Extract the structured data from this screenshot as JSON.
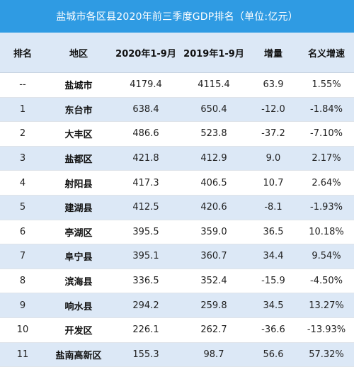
{
  "title": "盐城市各区县2020年前三季度GDP排名（单位:亿元）",
  "columns": [
    "排名",
    "地区",
    "2020年1-9月",
    "2019年1-9月",
    "增量",
    "名义增速"
  ],
  "rows": [
    {
      "rank": "--",
      "region": "盐城市",
      "gdp2020": "4179.4",
      "gdp2019": "4115.4",
      "increase": "63.9",
      "growth": "1.55%"
    },
    {
      "rank": "1",
      "region": "东台市",
      "gdp2020": "638.4",
      "gdp2019": "650.4",
      "increase": "-12.0",
      "growth": "-1.84%"
    },
    {
      "rank": "2",
      "region": "大丰区",
      "gdp2020": "486.6",
      "gdp2019": "523.8",
      "increase": "-37.2",
      "growth": "-7.10%"
    },
    {
      "rank": "3",
      "region": "盐都区",
      "gdp2020": "421.8",
      "gdp2019": "412.9",
      "increase": "9.0",
      "growth": "2.17%"
    },
    {
      "rank": "4",
      "region": "射阳县",
      "gdp2020": "417.3",
      "gdp2019": "406.5",
      "increase": "10.7",
      "growth": "2.64%"
    },
    {
      "rank": "5",
      "region": "建湖县",
      "gdp2020": "412.5",
      "gdp2019": "420.6",
      "increase": "-8.1",
      "growth": "-1.93%"
    },
    {
      "rank": "6",
      "region": "亭湖区",
      "gdp2020": "395.5",
      "gdp2019": "359.0",
      "increase": "36.5",
      "growth": "10.18%"
    },
    {
      "rank": "7",
      "region": "阜宁县",
      "gdp2020": "395.1",
      "gdp2019": "360.7",
      "increase": "34.4",
      "growth": "9.54%"
    },
    {
      "rank": "8",
      "region": "滨海县",
      "gdp2020": "336.5",
      "gdp2019": "352.4",
      "increase": "-15.9",
      "growth": "-4.50%"
    },
    {
      "rank": "9",
      "region": "响水县",
      "gdp2020": "294.2",
      "gdp2019": "259.8",
      "increase": "34.5",
      "growth": "13.27%"
    },
    {
      "rank": "10",
      "region": "开发区",
      "gdp2020": "226.1",
      "gdp2019": "262.7",
      "increase": "-36.6",
      "growth": "-13.93%"
    },
    {
      "rank": "11",
      "region": "盐南高新区",
      "gdp2020": "155.3",
      "gdp2019": "98.7",
      "increase": "56.6",
      "growth": "57.32%"
    }
  ],
  "colors": {
    "title_bar": "#2F9BE3",
    "header_bg": "#DCE8F6",
    "stripe_bg": "#DCE8F6"
  }
}
